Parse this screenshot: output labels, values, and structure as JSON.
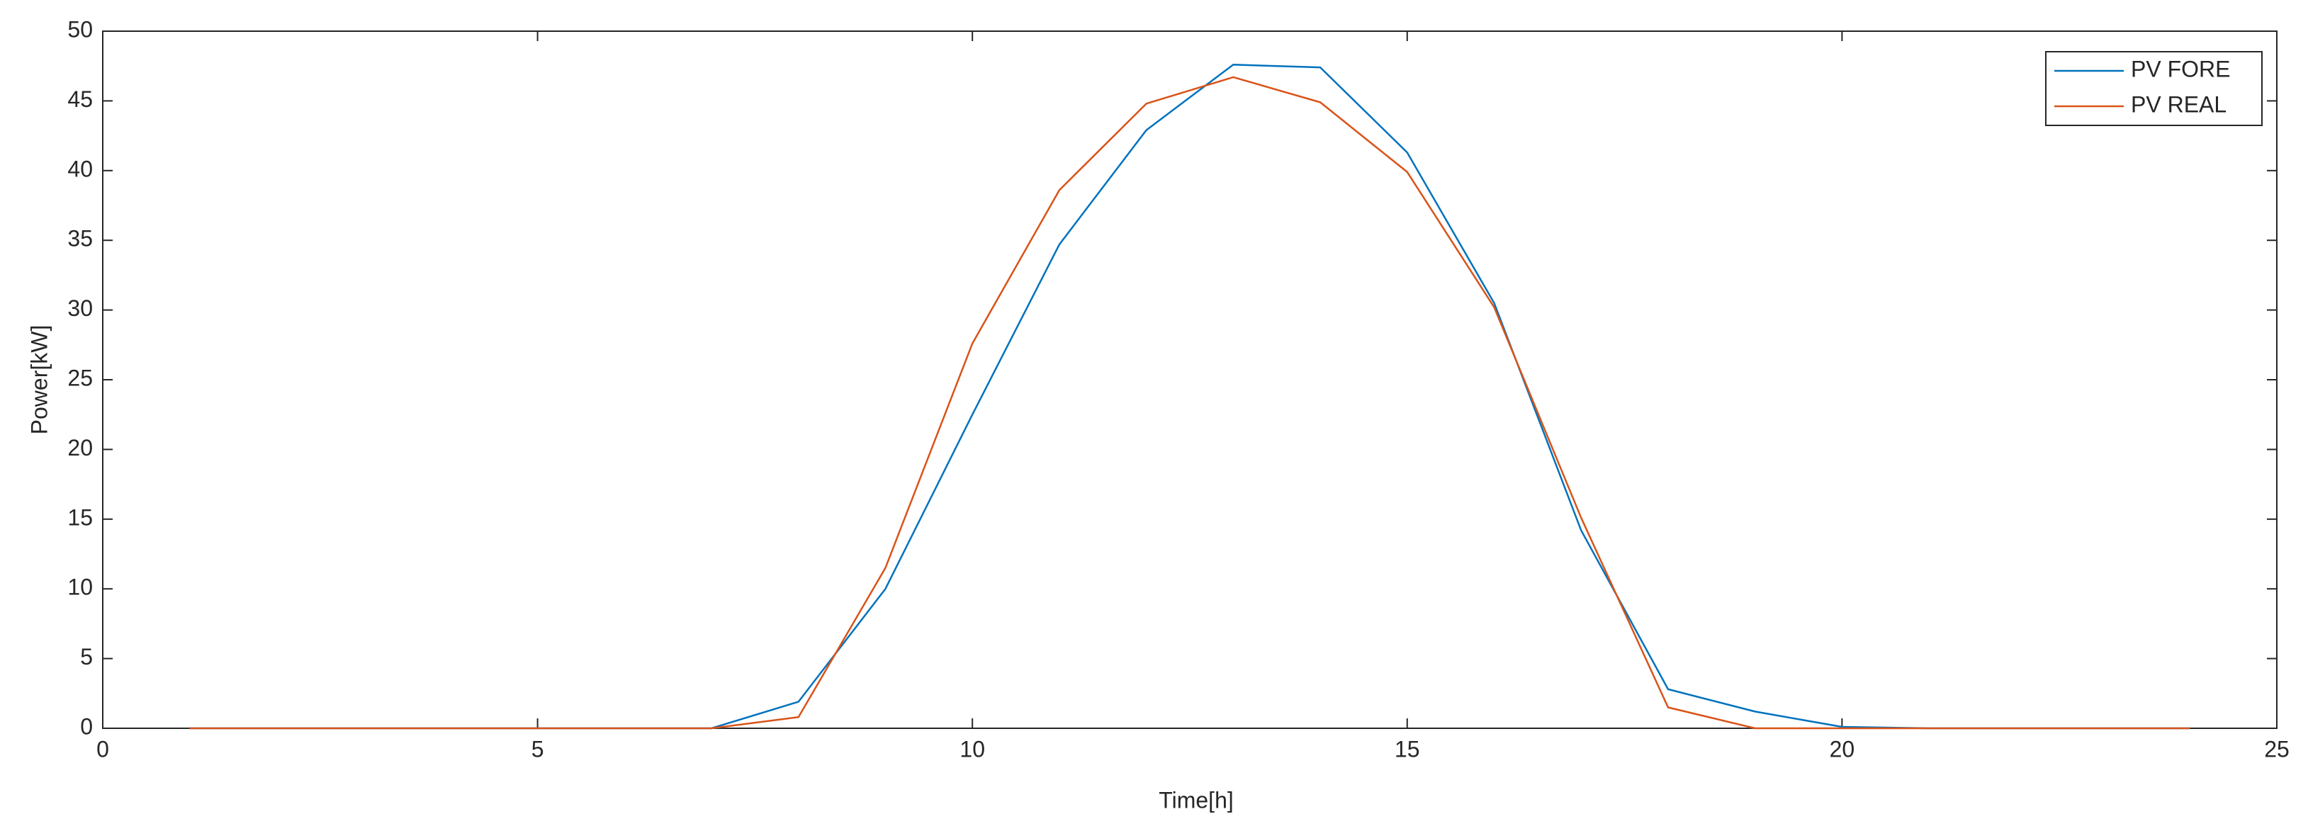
{
  "chart_data": {
    "type": "line",
    "x_label": "Time[h]",
    "y_label": "Power[kW]",
    "x": [
      1,
      2,
      3,
      4,
      5,
      6,
      7,
      8,
      9,
      10,
      11,
      12,
      13,
      14,
      15,
      16,
      17,
      18,
      19,
      20,
      21,
      22,
      23,
      24
    ],
    "series": [
      {
        "name": "PV FORE",
        "color": "#0072BD",
        "values": [
          0,
          0,
          0,
          0,
          0,
          0,
          0,
          1.9,
          10,
          22.5,
          34.7,
          42.9,
          47.6,
          47.4,
          41.3,
          30.5,
          14.2,
          2.8,
          1.2,
          0.1,
          0,
          0,
          0,
          0
        ]
      },
      {
        "name": "PV REAL",
        "color": "#D95319",
        "values": [
          0,
          0,
          0,
          0,
          0,
          0,
          0,
          0.8,
          11.5,
          27.6,
          38.6,
          44.8,
          46.7,
          44.9,
          39.9,
          30.2,
          15.1,
          1.5,
          0,
          0,
          0,
          0,
          0,
          0
        ]
      }
    ],
    "xlim": [
      0,
      25
    ],
    "xticks": [
      0,
      5,
      10,
      15,
      20,
      25
    ],
    "ylim": [
      0,
      50
    ],
    "yticks": [
      0,
      5,
      10,
      15,
      20,
      25,
      30,
      35,
      40,
      45,
      50
    ],
    "legend": "upper right"
  }
}
